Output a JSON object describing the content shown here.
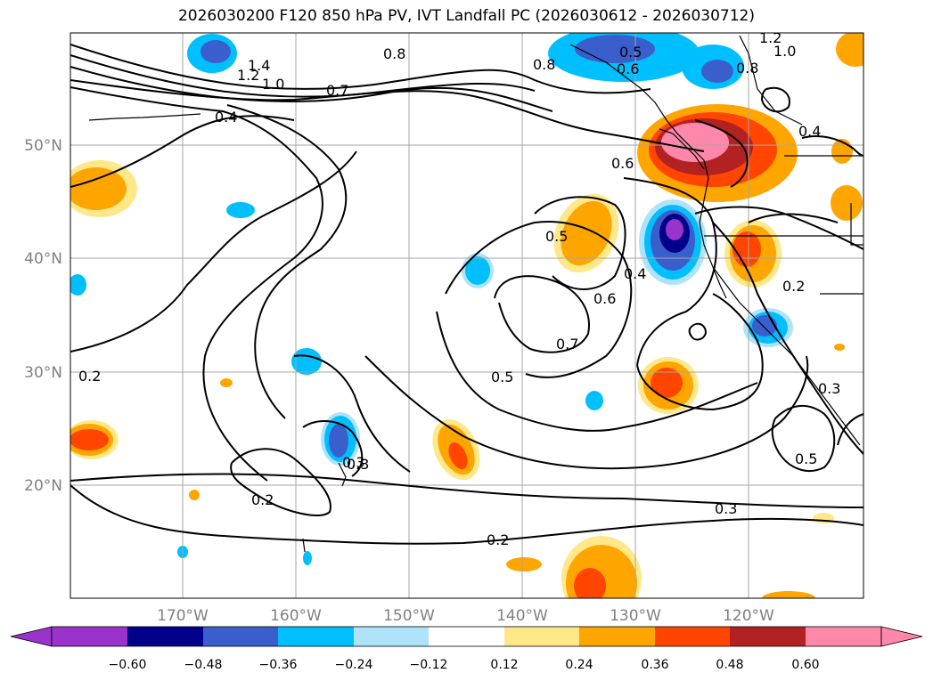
{
  "title": "2026030200 F120 850 hPa PV, IVT Landfall PC (2026030612 - 2026030712)",
  "map": {
    "lon_ticks": [
      "170°W",
      "160°W",
      "150°W",
      "140°W",
      "130°W",
      "120°W"
    ],
    "lat_ticks": [
      "50°N",
      "40°N",
      "30°N",
      "20°N"
    ],
    "contour_labels": [
      "1.4",
      "1.2",
      "1.0",
      "0.8",
      "0.7",
      "0.4",
      "0.5",
      "0.6",
      "0.8",
      "0.8",
      "1.0",
      "1.2",
      "0.6",
      "0.5",
      "0.4",
      "0.6",
      "0.7",
      "0.5",
      "0.4",
      "0.2",
      "0.3",
      "0.2",
      "0.2",
      "0.3",
      "0.3",
      "0.5",
      "0.2",
      "0.3"
    ]
  },
  "colorbar": {
    "ticks": [
      "−0.60",
      "−0.48",
      "−0.36",
      "−0.24",
      "−0.12",
      "0.12",
      "0.24",
      "0.36",
      "0.48",
      "0.60"
    ],
    "colors": [
      "#9933cc",
      "#00008b",
      "#3a5fcd",
      "#00bfff",
      "#aee3fa",
      "#ffffff",
      "#ffe88a",
      "#ffa500",
      "#ff4500",
      "#b22222",
      "#ff88aa",
      "#ff88aa"
    ]
  }
}
